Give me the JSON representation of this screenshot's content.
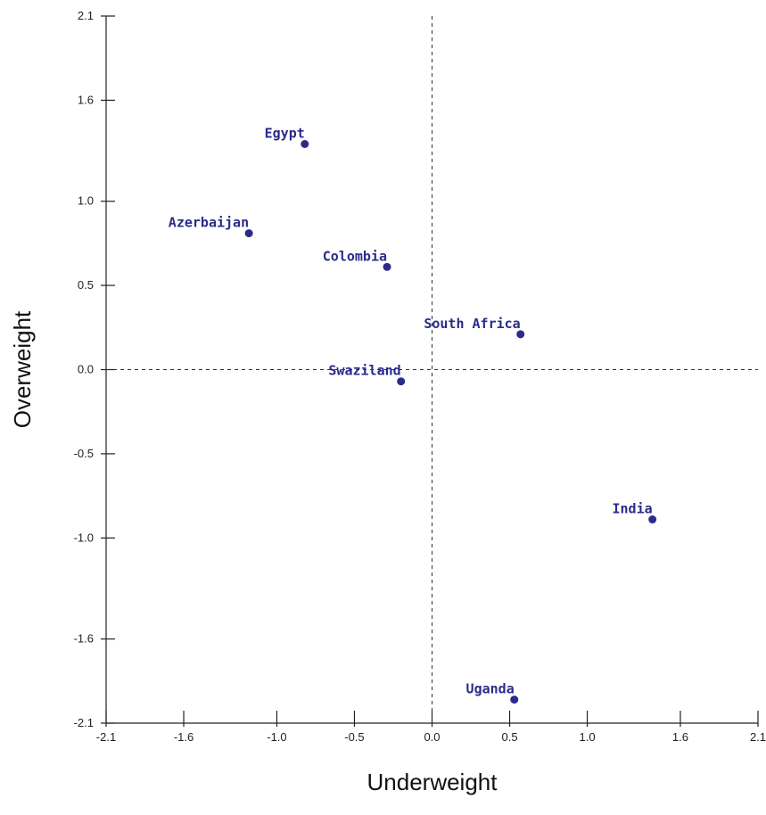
{
  "chart_data": {
    "type": "scatter",
    "xlabel": "Underweight",
    "ylabel": "Overweight",
    "xlim": [
      -2.1,
      2.1
    ],
    "ylim": [
      -2.1,
      2.1
    ],
    "x_ticks": [
      -2.1,
      -1.6,
      -1.0,
      -0.5,
      0.0,
      0.5,
      1.0,
      1.6,
      2.1
    ],
    "x_tick_labels": [
      "-2.1",
      "-1.6",
      "-1.0",
      "-0.5",
      "0.0",
      "0.5",
      "1.0",
      "1.6",
      "2.1"
    ],
    "y_ticks": [
      2.1,
      1.6,
      1.0,
      0.5,
      0.0,
      -0.5,
      -1.0,
      -1.6,
      -2.1
    ],
    "y_tick_labels": [
      "2.1",
      "1.6",
      "1.0",
      "0.5",
      "0.0",
      "-0.5",
      "-1.0",
      "-1.6",
      "-2.1"
    ],
    "reference_lines": {
      "x": 0.0,
      "y": 0.0,
      "style": "dashed"
    },
    "points": [
      {
        "label": "Egypt",
        "x": -0.82,
        "y": 1.34
      },
      {
        "label": "Azerbaijan",
        "x": -1.18,
        "y": 0.81
      },
      {
        "label": "Colombia",
        "x": -0.29,
        "y": 0.61
      },
      {
        "label": "South Africa",
        "x": 0.57,
        "y": 0.21
      },
      {
        "label": "Swaziland",
        "x": -0.2,
        "y": -0.07
      },
      {
        "label": "India",
        "x": 1.42,
        "y": -0.89
      },
      {
        "label": "Uganda",
        "x": 0.53,
        "y": -1.96
      }
    ],
    "grid": false,
    "point_color": "#2b2b8c"
  }
}
